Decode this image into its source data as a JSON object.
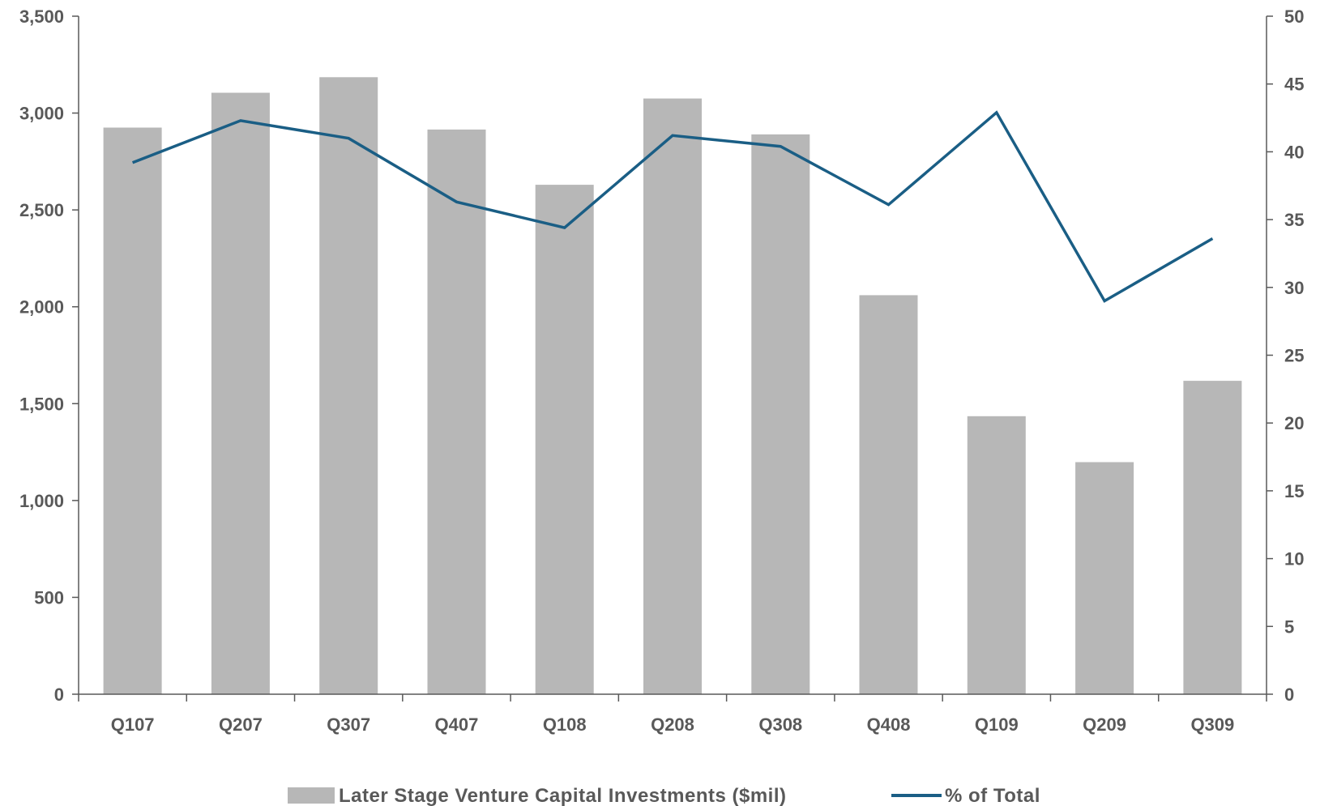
{
  "chart_data": {
    "type": "bar",
    "categories": [
      "Q107",
      "Q207",
      "Q307",
      "Q407",
      "Q108",
      "Q208",
      "Q308",
      "Q408",
      "Q109",
      "Q209",
      "Q309"
    ],
    "series": [
      {
        "name": "Later Stage Venture Capital Investments ($mil)",
        "type": "bar",
        "axis": "left",
        "values": [
          2925,
          3105,
          3185,
          2915,
          2630,
          3075,
          2890,
          2060,
          1435,
          1198,
          1618
        ]
      },
      {
        "name": "% of Total",
        "type": "line",
        "axis": "right",
        "values": [
          39.2,
          42.3,
          41.0,
          36.3,
          34.4,
          41.2,
          40.4,
          36.1,
          42.9,
          29.0,
          33.6
        ]
      }
    ],
    "left_axis": {
      "min": 0,
      "max": 3500,
      "ticks": [
        "0",
        "500",
        "1,000",
        "1,500",
        "2,000",
        "2,500",
        "3,000",
        "3,500"
      ]
    },
    "right_axis": {
      "min": 0,
      "max": 50,
      "ticks": [
        "0",
        "5",
        "10",
        "15",
        "20",
        "25",
        "30",
        "35",
        "40",
        "45",
        "50"
      ]
    },
    "colors": {
      "bar": "#b7b7b7",
      "line": "#1a5e85",
      "axis": "#595959",
      "text": "#595959"
    },
    "grid": false,
    "legend_position": "bottom"
  }
}
